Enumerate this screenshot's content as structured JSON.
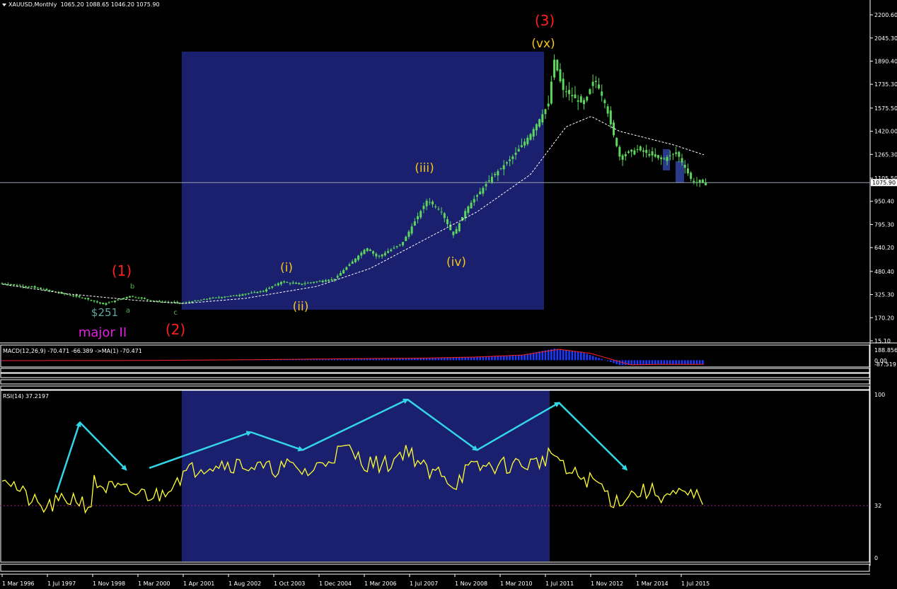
{
  "window": {
    "title": "XAUUSD,Monthly",
    "ohlc": "1065.20 1088.65 1046.20 1075.90"
  },
  "colors": {
    "background": "#000000",
    "candle": "#5cd65c",
    "box": "#1a1f6e",
    "ma_line": "#ffffff",
    "rsi_line": "#ffff33",
    "arrows": "#33d6e6",
    "label_red": "#ff2020",
    "label_yellow": "#f5c518",
    "label_magenta": "#e020e0",
    "label_teal": "#5fa8a0",
    "macd_hist": "#1a3aff",
    "macd_signal": "#ff2020"
  },
  "chart_data": [
    {
      "type": "candlestick",
      "title": "XAUUSD,Monthly",
      "price_axis_ticks": [
        "2200.60",
        "2045.30",
        "1890.40",
        "1735.30",
        "1575.50",
        "1420.00",
        "1265.30",
        "1105.50",
        "950.40",
        "795.30",
        "640.20",
        "480.40",
        "325.30",
        "170.20",
        "15.10"
      ],
      "current_price": "1075.90",
      "x_tick_labels": [
        "1 Mar 1996",
        "1 Jul 1997",
        "1 Nov 1998",
        "1 Mar 2000",
        "1 Apr 2001",
        "1 Aug 2002",
        "1 Oct 2003",
        "1 Dec 2004",
        "1 Mar 2006",
        "1 Jul 2007",
        "1 Nov 2008",
        "1 Mar 2010",
        "1 Jul 2011",
        "1 Nov 2012",
        "1 Mar 2014",
        "1 Jul 2015"
      ],
      "ylim": [
        15.1,
        2200.6
      ],
      "price_anchors": [
        [
          1996.17,
          400
        ],
        [
          1997.0,
          375
        ],
        [
          1998.5,
          300
        ],
        [
          1999.0,
          260
        ],
        [
          1999.75,
          315
        ],
        [
          2000.5,
          280
        ],
        [
          2001.25,
          268
        ],
        [
          2002.0,
          300
        ],
        [
          2002.75,
          320
        ],
        [
          2003.5,
          350
        ],
        [
          2004.0,
          410
        ],
        [
          2004.5,
          395
        ],
        [
          2005.5,
          430
        ],
        [
          2006.4,
          640
        ],
        [
          2006.7,
          575
        ],
        [
          2007.4,
          670
        ],
        [
          2008.1,
          960
        ],
        [
          2008.5,
          880
        ],
        [
          2008.83,
          720
        ],
        [
          2009.2,
          900
        ],
        [
          2009.9,
          1110
        ],
        [
          2010.5,
          1250
        ],
        [
          2011.0,
          1400
        ],
        [
          2011.5,
          1600
        ],
        [
          2011.67,
          1900
        ],
        [
          2011.9,
          1700
        ],
        [
          2012.5,
          1600
        ],
        [
          2012.8,
          1780
        ],
        [
          2013.1,
          1600
        ],
        [
          2013.5,
          1250
        ],
        [
          2014.0,
          1300
        ],
        [
          2014.7,
          1230
        ],
        [
          2015.1,
          1280
        ],
        [
          2015.55,
          1080
        ],
        [
          2015.9,
          1075
        ]
      ],
      "ma_anchors": [
        [
          1996.17,
          395
        ],
        [
          1998.0,
          330
        ],
        [
          2000.0,
          285
        ],
        [
          2001.25,
          265
        ],
        [
          2003.0,
          300
        ],
        [
          2005.0,
          380
        ],
        [
          2006.5,
          500
        ],
        [
          2008.0,
          690
        ],
        [
          2009.5,
          880
        ],
        [
          2011.0,
          1130
        ],
        [
          2012.0,
          1450
        ],
        [
          2012.7,
          1520
        ],
        [
          2013.5,
          1420
        ],
        [
          2015.0,
          1330
        ],
        [
          2015.9,
          1260
        ]
      ],
      "annotations": {
        "wave_1": "(1)",
        "wave_2": "(2)",
        "wave_3": "(3)",
        "i": "(i)",
        "ii": "(ii)",
        "iii": "(iii)",
        "iv": "(iv)",
        "vx": "(vx)",
        "b": "b",
        "a": "a",
        "c": "c",
        "low_price": "$251",
        "major": "major II"
      }
    },
    {
      "type": "line",
      "title": "MACD(12,26,9) -70.471 -66.389 ->MA(1) -70.471",
      "axis_ticks": [
        "188.856",
        "0.00",
        "-87.519"
      ],
      "ylim": [
        -87.519,
        188.856
      ],
      "macd_anchors": [
        [
          1996.17,
          -8
        ],
        [
          2000.0,
          -6
        ],
        [
          2003.0,
          8
        ],
        [
          2006.0,
          25
        ],
        [
          2008.0,
          35
        ],
        [
          2009.5,
          55
        ],
        [
          2010.8,
          90
        ],
        [
          2011.67,
          188
        ],
        [
          2012.5,
          120
        ],
        [
          2013.0,
          20
        ],
        [
          2013.5,
          -80
        ],
        [
          2014.5,
          -66
        ],
        [
          2015.9,
          -70
        ]
      ],
      "signal_anchors": [
        [
          1996.17,
          -7
        ],
        [
          2000.0,
          -5
        ],
        [
          2003.0,
          7
        ],
        [
          2006.0,
          24
        ],
        [
          2008.0,
          34
        ],
        [
          2009.5,
          52
        ],
        [
          2010.8,
          85
        ],
        [
          2011.8,
          178
        ],
        [
          2012.7,
          110
        ],
        [
          2013.3,
          10
        ],
        [
          2013.8,
          -75
        ],
        [
          2014.5,
          -68
        ],
        [
          2015.9,
          -66
        ]
      ]
    },
    {
      "type": "line",
      "title": "RSI(14) 37.2197",
      "axis_ticks": [
        "100",
        "32",
        "0"
      ],
      "ylim": [
        0,
        100
      ],
      "level": 32,
      "rsi_anchors": [
        [
          1996.17,
          52
        ],
        [
          1996.8,
          38
        ],
        [
          1997.3,
          30
        ],
        [
          1997.8,
          34
        ],
        [
          1998.2,
          37
        ],
        [
          1998.65,
          31
        ],
        [
          1998.75,
          46
        ],
        [
          1999.1,
          43
        ],
        [
          1999.8,
          40
        ],
        [
          2000.6,
          38
        ],
        [
          2001.0,
          48
        ],
        [
          2001.7,
          56
        ],
        [
          2002.2,
          58
        ],
        [
          2003.0,
          57
        ],
        [
          2003.6,
          54
        ],
        [
          2004.2,
          56
        ],
        [
          2004.8,
          52
        ],
        [
          2005.4,
          62
        ],
        [
          2005.8,
          67
        ],
        [
          2006.4,
          58
        ],
        [
          2007.0,
          57
        ],
        [
          2007.5,
          67
        ],
        [
          2007.9,
          58
        ],
        [
          2008.2,
          50
        ],
        [
          2008.5,
          54
        ],
        [
          2008.83,
          44
        ],
        [
          2009.2,
          54
        ],
        [
          2009.8,
          56
        ],
        [
          2010.5,
          57
        ],
        [
          2011.2,
          58
        ],
        [
          2011.67,
          65
        ],
        [
          2011.95,
          53
        ],
        [
          2012.6,
          48
        ],
        [
          2012.9,
          46
        ],
        [
          2013.35,
          34
        ],
        [
          2013.8,
          39
        ],
        [
          2014.3,
          41
        ],
        [
          2014.8,
          38
        ],
        [
          2015.3,
          38
        ],
        [
          2015.9,
          37
        ]
      ],
      "wave_arrows": [
        [
          [
            1997.7,
            40
          ],
          [
            1998.35,
            83
          ]
        ],
        [
          [
            1998.35,
            83
          ],
          [
            1999.65,
            54
          ]
        ],
        [
          [
            2000.3,
            55
          ],
          [
            2003.15,
            77
          ]
        ],
        [
          [
            2003.15,
            77
          ],
          [
            2004.6,
            66
          ]
        ],
        [
          [
            2004.6,
            66
          ],
          [
            2007.55,
            97
          ]
        ],
        [
          [
            2007.55,
            97
          ],
          [
            2009.5,
            66
          ]
        ],
        [
          [
            2009.5,
            66
          ],
          [
            2011.8,
            95
          ]
        ],
        [
          [
            2011.8,
            95
          ],
          [
            2013.7,
            54
          ]
        ]
      ]
    }
  ]
}
